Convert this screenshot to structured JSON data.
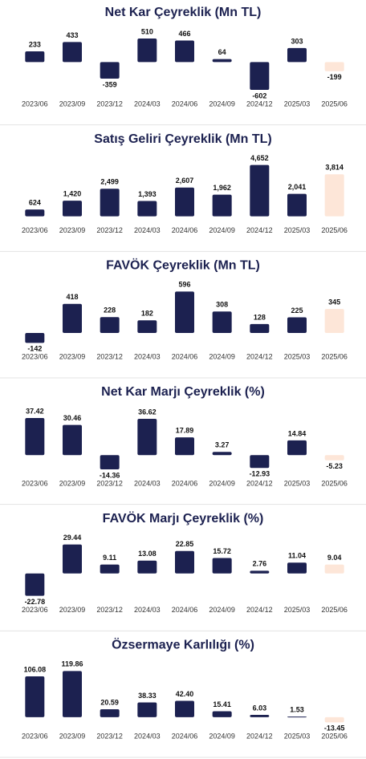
{
  "chart_data": [
    {
      "type": "bar",
      "title": "Net Kar Çeyreklik (Mn TL)",
      "categories": [
        "2023/06",
        "2023/09",
        "2023/12",
        "2024/03",
        "2024/06",
        "2024/09",
        "2024/12",
        "2025/03",
        "2025/06"
      ],
      "values": [
        233,
        433,
        -359,
        510,
        466,
        64,
        -602,
        303,
        -199
      ],
      "value_labels": [
        "233",
        "433",
        "-359",
        "510",
        "466",
        "64",
        "-602",
        "303",
        "-199"
      ],
      "colors": [
        "#1c2150",
        "#1c2150",
        "#1c2150",
        "#1c2150",
        "#1c2150",
        "#1c2150",
        "#1c2150",
        "#1c2150",
        "#fde6d8"
      ]
    },
    {
      "type": "bar",
      "title": "Satış Geliri Çeyreklik (Mn TL)",
      "categories": [
        "2023/06",
        "2023/09",
        "2023/12",
        "2024/03",
        "2024/06",
        "2024/09",
        "2024/12",
        "2025/03",
        "2025/06"
      ],
      "values": [
        624,
        1420,
        2499,
        1393,
        2607,
        1962,
        4652,
        2041,
        3814
      ],
      "value_labels": [
        "624",
        "1,420",
        "2,499",
        "1,393",
        "2,607",
        "1,962",
        "4,652",
        "2,041",
        "3,814"
      ],
      "colors": [
        "#1c2150",
        "#1c2150",
        "#1c2150",
        "#1c2150",
        "#1c2150",
        "#1c2150",
        "#1c2150",
        "#1c2150",
        "#fde6d8"
      ]
    },
    {
      "type": "bar",
      "title": "FAVÖK Çeyreklik (Mn TL)",
      "categories": [
        "2023/06",
        "2023/09",
        "2023/12",
        "2024/03",
        "2024/06",
        "2024/09",
        "2024/12",
        "2025/03",
        "2025/06"
      ],
      "values": [
        -142,
        418,
        228,
        182,
        596,
        308,
        128,
        225,
        345
      ],
      "value_labels": [
        "-142",
        "418",
        "228",
        "182",
        "596",
        "308",
        "128",
        "225",
        "345"
      ],
      "colors": [
        "#1c2150",
        "#1c2150",
        "#1c2150",
        "#1c2150",
        "#1c2150",
        "#1c2150",
        "#1c2150",
        "#1c2150",
        "#fde6d8"
      ]
    },
    {
      "type": "bar",
      "title": "Net Kar Marjı Çeyreklik (%)",
      "categories": [
        "2023/06",
        "2023/09",
        "2023/12",
        "2024/03",
        "2024/06",
        "2024/09",
        "2024/12",
        "2025/03",
        "2025/06"
      ],
      "values": [
        37.42,
        30.46,
        -14.36,
        36.62,
        17.89,
        3.27,
        -12.93,
        14.84,
        -5.23
      ],
      "value_labels": [
        "37.42",
        "30.46",
        "-14.36",
        "36.62",
        "17.89",
        "3.27",
        "-12.93",
        "14.84",
        "-5.23"
      ],
      "colors": [
        "#1c2150",
        "#1c2150",
        "#1c2150",
        "#1c2150",
        "#1c2150",
        "#1c2150",
        "#1c2150",
        "#1c2150",
        "#fde6d8"
      ]
    },
    {
      "type": "bar",
      "title": "FAVÖK Marjı Çeyreklik (%)",
      "categories": [
        "2023/06",
        "2023/09",
        "2023/12",
        "2024/03",
        "2024/06",
        "2024/09",
        "2024/12",
        "2025/03",
        "2025/06"
      ],
      "values": [
        -22.78,
        29.44,
        9.11,
        13.08,
        22.85,
        15.72,
        2.76,
        11.04,
        9.04
      ],
      "value_labels": [
        "-22.78",
        "29.44",
        "9.11",
        "13.08",
        "22.85",
        "15.72",
        "2.76",
        "11.04",
        "9.04"
      ],
      "colors": [
        "#1c2150",
        "#1c2150",
        "#1c2150",
        "#1c2150",
        "#1c2150",
        "#1c2150",
        "#1c2150",
        "#1c2150",
        "#fde6d8"
      ]
    },
    {
      "type": "bar",
      "title": "Özsermaye Karlılığı (%)",
      "categories": [
        "2023/06",
        "2023/09",
        "2023/12",
        "2024/03",
        "2024/06",
        "2024/09",
        "2024/12",
        "2025/03",
        "2025/06"
      ],
      "values": [
        106.08,
        119.86,
        20.59,
        38.33,
        42.4,
        15.41,
        6.03,
        1.53,
        -13.45
      ],
      "value_labels": [
        "106.08",
        "119.86",
        "20.59",
        "38.33",
        "42.40",
        "15.41",
        "6.03",
        "1.53",
        "-13.45"
      ],
      "colors": [
        "#1c2150",
        "#1c2150",
        "#1c2150",
        "#1c2150",
        "#1c2150",
        "#1c2150",
        "#1c2150",
        "#1c2150",
        "#fde6d8"
      ]
    }
  ]
}
